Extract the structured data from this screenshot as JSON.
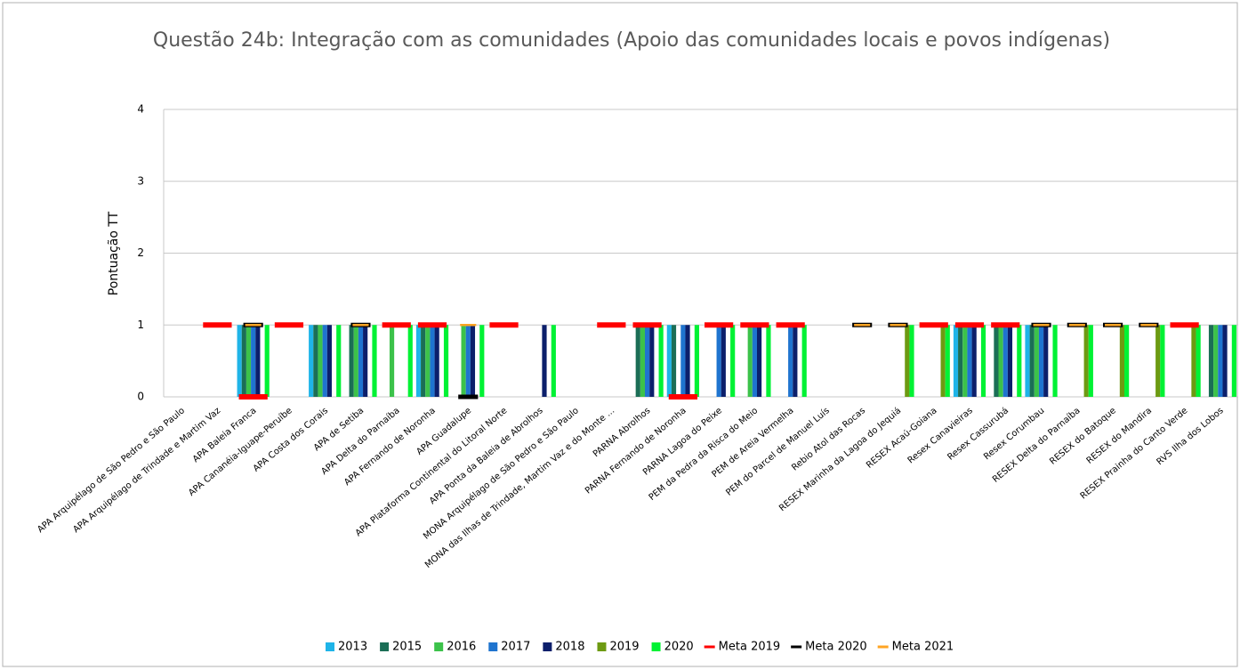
{
  "chart_data": {
    "type": "bar",
    "title": "Questão 24b: Integração com as comunidades (Apoio das comunidades locais e povos indígenas)",
    "y_label": "Pontuação TT",
    "categories": [
      "APA Arquipélago de São Pedro e São Paulo",
      "APA Arquipélago de Trindade e Martim Vaz",
      "APA Baleia Franca",
      "APA Cananéia-Iguape-Peruíbe",
      "APA Costa dos Corais",
      "APA de Setiba",
      "APA Delta do Parnaíba",
      "APA Fernando de Noronha",
      "APA Guadalupe",
      "APA Plataforma Continental do Litoral Norte",
      "APA Ponta da Baleia de Abrolhos",
      "MONA Arquipélago de São Pedro e São Paulo",
      "MONA das Ilhas de Trindade, Martim Vaz e do Monte ...",
      "PARNA Abrolhos",
      "PARNA Fernando de Noronha",
      "PARNA Lagoa do Peixe",
      "PEM da Pedra da Risca do Meio",
      "PEM de Areia Vermelha",
      "PEM do Parcel de Manuel Luís",
      "Rebio Atol das Rocas",
      "RESEX  Marinha da Lagoa do Jequiá",
      "RESEX Acaú-Goiana",
      "Resex Canavieiras",
      "Resex Cassurubá",
      "Resex Corumbau",
      "RESEX Delta do Parnaíba",
      "RESEX do Batoque",
      "RESEX do Mandira",
      "RESEX Prainha do Canto Verde",
      "RVS Ilha dos Lobos"
    ],
    "ylim": [
      0,
      4
    ],
    "yticks": [
      0,
      1,
      2,
      3,
      4
    ],
    "grid": true,
    "series": [
      {
        "name": "2013",
        "mark": "bar",
        "color": "#1fb4e8",
        "values": [
          null,
          null,
          1,
          null,
          1,
          null,
          null,
          1,
          null,
          null,
          null,
          null,
          null,
          null,
          1,
          null,
          null,
          null,
          null,
          null,
          null,
          null,
          1,
          null,
          1,
          null,
          null,
          null,
          null,
          null
        ]
      },
      {
        "name": "2015",
        "mark": "bar",
        "color": "#1b6e56",
        "values": [
          null,
          null,
          1,
          null,
          1,
          1,
          null,
          1,
          null,
          null,
          null,
          null,
          null,
          1,
          1,
          null,
          null,
          null,
          null,
          null,
          null,
          null,
          1,
          1,
          1,
          null,
          null,
          null,
          null,
          1
        ]
      },
      {
        "name": "2016",
        "mark": "bar",
        "color": "#3cc24a",
        "values": [
          null,
          null,
          1,
          null,
          1,
          1,
          1,
          1,
          1,
          null,
          null,
          null,
          null,
          1,
          null,
          null,
          1,
          null,
          null,
          null,
          null,
          null,
          1,
          1,
          1,
          null,
          null,
          null,
          null,
          1
        ]
      },
      {
        "name": "2017",
        "mark": "bar",
        "color": "#1f74cf",
        "values": [
          null,
          null,
          1,
          null,
          1,
          1,
          null,
          1,
          1,
          null,
          null,
          null,
          null,
          1,
          1,
          1,
          1,
          1,
          null,
          null,
          null,
          null,
          1,
          1,
          1,
          null,
          null,
          null,
          null,
          1
        ]
      },
      {
        "name": "2018",
        "mark": "bar",
        "color": "#0c1f6b",
        "values": [
          null,
          null,
          1,
          null,
          1,
          1,
          null,
          1,
          1,
          null,
          1,
          null,
          null,
          1,
          1,
          1,
          1,
          1,
          null,
          null,
          null,
          null,
          1,
          1,
          1,
          null,
          null,
          null,
          null,
          1
        ]
      },
      {
        "name": "2019",
        "mark": "bar",
        "color": "#6d9a12",
        "values": [
          null,
          null,
          null,
          null,
          null,
          null,
          null,
          null,
          null,
          null,
          null,
          null,
          null,
          null,
          null,
          null,
          null,
          null,
          null,
          null,
          1,
          1,
          null,
          null,
          null,
          1,
          1,
          1,
          1,
          null
        ]
      },
      {
        "name": "2020",
        "mark": "bar",
        "color": "#00f234",
        "values": [
          null,
          null,
          1,
          null,
          1,
          1,
          1,
          1,
          1,
          null,
          1,
          null,
          null,
          1,
          1,
          1,
          1,
          1,
          null,
          null,
          1,
          1,
          1,
          1,
          1,
          1,
          1,
          1,
          1,
          1
        ]
      },
      {
        "name": "Meta 2019",
        "mark": "dash",
        "color": "#ff0000",
        "values": [
          null,
          1,
          0,
          1,
          null,
          null,
          1,
          1,
          null,
          1,
          null,
          null,
          1,
          1,
          0,
          1,
          1,
          1,
          null,
          null,
          null,
          1,
          1,
          1,
          null,
          null,
          null,
          null,
          1,
          null
        ]
      },
      {
        "name": "Meta 2020",
        "mark": "dash",
        "color": "#000000",
        "values": [
          null,
          null,
          1,
          null,
          null,
          1,
          null,
          null,
          0,
          null,
          null,
          null,
          null,
          null,
          null,
          null,
          null,
          null,
          null,
          1,
          1,
          null,
          null,
          null,
          1,
          1,
          1,
          1,
          null,
          null
        ]
      },
      {
        "name": "Meta 2021",
        "mark": "dash",
        "color": "#ffa423",
        "values": [
          null,
          null,
          1,
          null,
          null,
          1,
          null,
          null,
          1,
          null,
          null,
          null,
          null,
          null,
          null,
          null,
          null,
          null,
          null,
          1,
          1,
          null,
          null,
          null,
          1,
          1,
          1,
          1,
          null,
          null
        ]
      }
    ]
  }
}
